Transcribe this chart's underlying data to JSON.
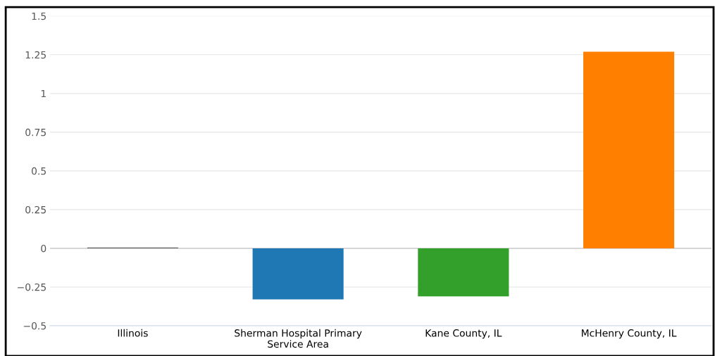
{
  "chart_data": {
    "type": "bar",
    "categories": [
      "Illinois",
      "Sherman Hospital Primary\nService Area",
      "Kane County, IL",
      "McHenry County, IL"
    ],
    "values": [
      0.005,
      -0.33,
      -0.31,
      1.27
    ],
    "colors": [
      "#666666",
      "#1f77b4",
      "#33a02c",
      "#ff7f00"
    ],
    "ylim": [
      -0.5,
      1.5
    ],
    "yticks": [
      {
        "value": -0.5,
        "label": "−0.5"
      },
      {
        "value": -0.25,
        "label": "−0.25"
      },
      0,
      0.25,
      0.5,
      0.75,
      1,
      1.25,
      1.5
    ],
    "grid": "y",
    "legend": false
  }
}
